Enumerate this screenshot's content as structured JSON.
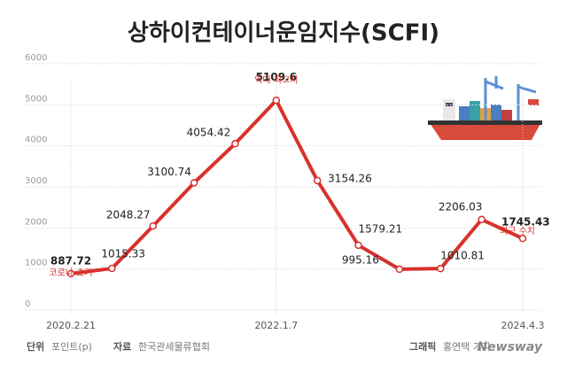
{
  "chart_data": {
    "type": "line",
    "title": "상하이컨테이너운임지수(SCFI)",
    "categories": [
      "2020.2.21",
      null,
      null,
      null,
      null,
      "2022.1.7",
      null,
      null,
      null,
      null,
      null,
      "2024.4.3"
    ],
    "series": [
      {
        "name": "SCFI",
        "color": "#d8312c",
        "values": [
          887.72,
          1015.33,
          2048.27,
          3100.74,
          4054.42,
          5109.6,
          3154.26,
          1579.21,
          995.16,
          1010.81,
          2206.03,
          1745.43
        ]
      }
    ],
    "ylim": [
      0,
      6000
    ],
    "yticks": [
      0,
      1000,
      2000,
      3000,
      4000,
      5000,
      6000
    ],
    "grid": true,
    "annotations": [
      "코로나 초기",
      "역대 최고치",
      "최근 수치"
    ],
    "footer": {
      "unit_label": "단위",
      "unit": "포인트(p)",
      "source_label": "자료",
      "source": "한국관세물류협회",
      "credit_label": "그래픽",
      "credit": "홍연택 기자",
      "brand": "Newsway"
    }
  }
}
